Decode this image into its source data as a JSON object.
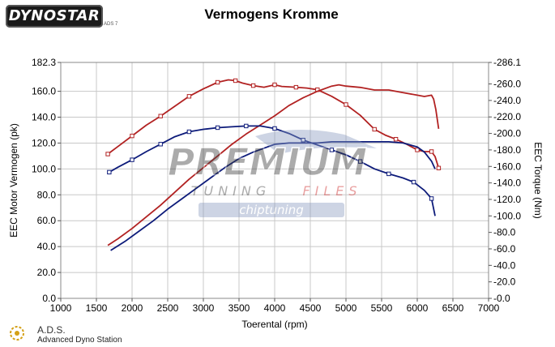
{
  "header": {
    "logo_text": "DYNOSTAR",
    "logo_sub": "ADS 7",
    "title": "Vermogens Kromme"
  },
  "footer": {
    "brand_title": "A.D.S.",
    "brand_sub": "Advanced Dyno Station"
  },
  "watermark": {
    "line1": "PREMIUM",
    "line2a": "TUNING",
    "line2b": "FILES",
    "line3": "chiptuning"
  },
  "colors": {
    "red": "#b22222",
    "blue": "#0d1b7a",
    "grid": "#c8c8c8",
    "watermark_gray": "#3a3a3a",
    "watermark_red": "#cc1f1f"
  },
  "chart_data": {
    "type": "line",
    "title": "Vermogens Kromme",
    "xlabel": "Toerental (rpm)",
    "ylabel": "EEC Motor Vermogen (pk)",
    "y2label": "EEC Torque (Nm)",
    "xlim": [
      1000,
      7000
    ],
    "ylim": [
      0,
      182.3
    ],
    "y2lim": [
      0,
      286.1
    ],
    "x_ticks": [
      1000,
      1500,
      2000,
      2500,
      3000,
      3500,
      4000,
      4500,
      5000,
      5500,
      6000,
      6500,
      7000
    ],
    "y_ticks": [
      0,
      20,
      40,
      60,
      80,
      100,
      120,
      140,
      160,
      182.3
    ],
    "y_tick_labels": [
      "0.0",
      "20.0",
      "40.0",
      "60.0",
      "80.0",
      "100.0",
      "120.0",
      "140.0",
      "160.0",
      "182.3"
    ],
    "y2_ticks": [
      0,
      20,
      40,
      60,
      80,
      100,
      120,
      140,
      160,
      180,
      200,
      220,
      240,
      260,
      286.1
    ],
    "y2_tick_labels": [
      "0.0",
      "20.0",
      "40.0",
      "60.0",
      "80.0",
      "100.0",
      "120.0",
      "140.0",
      "160.0",
      "180.0",
      "200.0",
      "220.0",
      "240.0",
      "260.0",
      "286.1"
    ],
    "grid": true,
    "series": [
      {
        "key": "tuned-torque",
        "axis": "right",
        "color": "#b22222",
        "markers": true,
        "x": [
          1660,
          1800,
          2000,
          2200,
          2400,
          2600,
          2800,
          3000,
          3200,
          3350,
          3450,
          3550,
          3700,
          3850,
          4000,
          4100,
          4300,
          4450,
          4600,
          4800,
          5000,
          5200,
          5400,
          5550,
          5700,
          5850,
          6000,
          6100,
          6200,
          6250,
          6300
        ],
        "y": [
          175,
          184,
          197,
          210,
          221,
          233,
          245,
          254,
          262,
          265,
          264,
          261,
          258,
          256,
          259,
          257,
          256,
          255,
          253,
          245,
          235,
          222,
          205,
          198,
          193,
          187,
          180,
          178,
          178,
          172,
          158
        ]
      },
      {
        "key": "tuned-power",
        "axis": "left",
        "color": "#b22222",
        "markers": false,
        "x": [
          1660,
          1800,
          2000,
          2200,
          2400,
          2600,
          2800,
          3000,
          3200,
          3400,
          3600,
          3800,
          4000,
          4200,
          4400,
          4600,
          4800,
          4900,
          5000,
          5200,
          5400,
          5600,
          5800,
          6000,
          6100,
          6200,
          6230,
          6260,
          6300
        ],
        "y": [
          41,
          46,
          54,
          63,
          72,
          82,
          92,
          101,
          110,
          119,
          127,
          134,
          141,
          149,
          155,
          160,
          164,
          165,
          164,
          163,
          161,
          161,
          159,
          157,
          156,
          157,
          154,
          146,
          131
        ]
      },
      {
        "key": "stock-torque",
        "axis": "right",
        "color": "#0d1b7a",
        "markers": true,
        "x": [
          1680,
          1800,
          2000,
          2200,
          2400,
          2600,
          2800,
          3000,
          3200,
          3400,
          3600,
          3800,
          4000,
          4200,
          4400,
          4600,
          4800,
          5000,
          5200,
          5400,
          5600,
          5800,
          5950,
          6100,
          6200,
          6250
        ],
        "y": [
          153,
          159,
          168,
          178,
          187,
          196,
          202,
          205,
          207,
          208,
          209,
          209,
          206,
          200,
          192,
          186,
          180,
          174,
          166,
          157,
          151,
          146,
          141,
          131,
          121,
          100
        ]
      },
      {
        "key": "stock-power",
        "axis": "left",
        "color": "#0d1b7a",
        "markers": false,
        "x": [
          1700,
          1900,
          2100,
          2300,
          2500,
          2700,
          2900,
          3100,
          3300,
          3500,
          3700,
          3900,
          4000,
          4200,
          4400,
          4600,
          4800,
          5000,
          5200,
          5400,
          5600,
          5800,
          6000,
          6100,
          6200,
          6250
        ],
        "y": [
          37,
          44,
          52,
          60,
          69,
          77,
          85,
          93,
          101,
          108,
          113,
          117,
          119,
          120,
          120,
          120,
          121,
          121,
          121,
          121,
          121,
          120,
          117,
          113,
          106,
          100
        ]
      }
    ]
  }
}
